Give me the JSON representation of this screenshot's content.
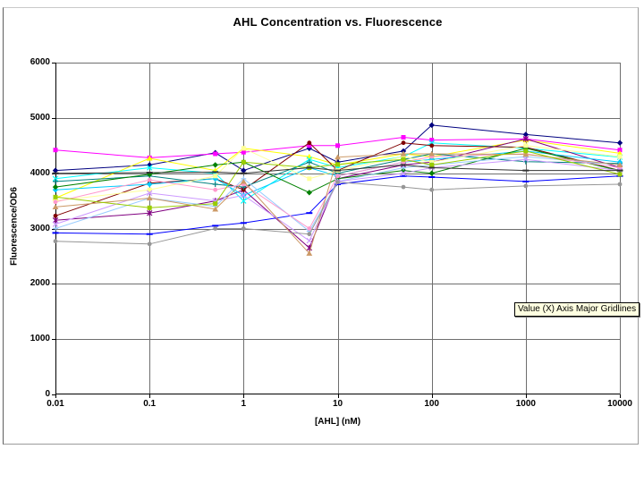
{
  "tooltip": {
    "text": "Value (X) Axis Major Gridlines",
    "bg_color": "#FFFFE1"
  },
  "chart_data": {
    "type": "line",
    "title": "AHL Concentration vs. Fluorescence",
    "xlabel": "[AHL] (nM)",
    "ylabel": "Fluorescence/OD6",
    "x_scale": "log",
    "xlim": [
      0.01,
      10000
    ],
    "ylim": [
      0,
      6000
    ],
    "x_tick_labels": [
      "0.01",
      "0.1",
      "1",
      "10",
      "100",
      "1000",
      "10000"
    ],
    "y_tick_values": [
      0,
      1000,
      2000,
      3000,
      4000,
      5000,
      6000
    ],
    "grid": {
      "x_major": true,
      "y_major": true,
      "color": "#6e6e6e"
    },
    "legend": "none",
    "x": [
      0.01,
      0.1,
      0.5,
      1,
      5,
      10,
      50,
      100,
      1000,
      10000
    ],
    "series": [
      {
        "name": "navy",
        "color": "#000080",
        "marker": "diamond",
        "values": [
          4050,
          4150,
          4370,
          4050,
          4450,
          4200,
          4400,
          4870,
          4700,
          4550
        ]
      },
      {
        "name": "magenta",
        "color": "#FF00FF",
        "marker": "square",
        "values": [
          4420,
          4280,
          4350,
          4380,
          4500,
          4500,
          4650,
          4600,
          4620,
          4420
        ]
      },
      {
        "name": "yellow",
        "color": "#FFFF00",
        "marker": "triangle",
        "values": [
          3550,
          4270,
          4050,
          4450,
          4300,
          4150,
          4350,
          4300,
          4600,
          4360
        ]
      },
      {
        "name": "cyan",
        "color": "#00FFFF",
        "marker": "x",
        "values": [
          3900,
          4100,
          4000,
          3500,
          4250,
          4100,
          4300,
          4550,
          4450,
          4290
        ]
      },
      {
        "name": "purple",
        "color": "#800080",
        "marker": "asterisk",
        "values": [
          3150,
          3280,
          3500,
          3700,
          2650,
          3900,
          4150,
          4200,
          4620,
          4100
        ]
      },
      {
        "name": "maroon",
        "color": "#800000",
        "marker": "circle",
        "values": [
          3230,
          3820,
          3900,
          3700,
          4550,
          4050,
          4550,
          4500,
          4470,
          4050
        ]
      },
      {
        "name": "teal",
        "color": "#008080",
        "marker": "plus",
        "values": [
          3850,
          3950,
          3800,
          3750,
          4200,
          4000,
          4250,
          4350,
          4210,
          4175
        ]
      },
      {
        "name": "blue",
        "color": "#0000FF",
        "marker": "dash",
        "values": [
          2920,
          2900,
          3050,
          3100,
          3280,
          3800,
          3950,
          3930,
          3850,
          3950
        ]
      },
      {
        "name": "sky-blue",
        "color": "#00CCFF",
        "marker": "diamond",
        "values": [
          3700,
          3800,
          3900,
          3600,
          4100,
          3950,
          4200,
          4250,
          4400,
          4200
        ]
      },
      {
        "name": "green",
        "color": "#008000",
        "marker": "diamond",
        "values": [
          3750,
          3980,
          4150,
          4200,
          3650,
          3900,
          4050,
          4000,
          4450,
          4045
        ]
      },
      {
        "name": "pale-yellow",
        "color": "#FFFF99",
        "marker": "square",
        "values": [
          3500,
          3700,
          3950,
          4450,
          3900,
          4050,
          4300,
          4200,
          4500,
          4300
        ]
      },
      {
        "name": "pale-blue",
        "color": "#99CCFF",
        "marker": "plus",
        "values": [
          3000,
          3550,
          3400,
          3900,
          2950,
          3850,
          4100,
          4150,
          4300,
          4150
        ]
      },
      {
        "name": "pink",
        "color": "#FF99CC",
        "marker": "circle",
        "values": [
          3480,
          3880,
          3700,
          3800,
          3000,
          3950,
          4200,
          4300,
          4350,
          4100
        ]
      },
      {
        "name": "lavender",
        "color": "#CC99FF",
        "marker": "x",
        "values": [
          3080,
          3640,
          3500,
          3600,
          2780,
          3850,
          4000,
          4100,
          4250,
          4050
        ]
      },
      {
        "name": "tan-brown",
        "color": "#CC9966",
        "marker": "triangle",
        "values": [
          3390,
          3550,
          3350,
          3850,
          2550,
          4290,
          4350,
          4350,
          4340,
          4150
        ]
      },
      {
        "name": "olive",
        "color": "#99CC00",
        "marker": "square",
        "values": [
          3570,
          3375,
          3450,
          4200,
          4100,
          4160,
          4250,
          4150,
          4400,
          3980
        ]
      },
      {
        "name": "gray",
        "color": "#969696",
        "marker": "circle",
        "values": [
          2770,
          2720,
          3000,
          3000,
          2900,
          3840,
          3750,
          3700,
          3770,
          3800
        ]
      },
      {
        "name": "dark-dash",
        "color": "#333333",
        "marker": "dash",
        "values": [
          4000,
          4010,
          4020,
          4000,
          4100,
          4050,
          4150,
          4100,
          4050,
          4050
        ]
      }
    ]
  }
}
